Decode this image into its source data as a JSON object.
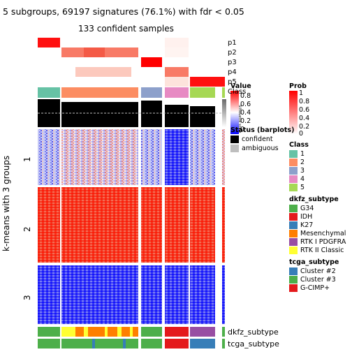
{
  "title": "5 subgroups, 69197 signatures (76.1%) with fdr < 0.05",
  "subtitle": "133 confident samples",
  "y_axis_label": "k-means with 3 groups",
  "row_groups": [
    "1",
    "2",
    "3"
  ],
  "top_annotation_rows": [
    "p1",
    "p2",
    "p3",
    "p4",
    "p5",
    "Class"
  ],
  "silhouette_label": "Silhouette\nscore",
  "bottom_annotation_rows": [
    "dkfz_subtype",
    "tcga_subtype"
  ],
  "legend_value": {
    "title": "Value",
    "ticks": [
      "0.8",
      "0.6",
      "0.4",
      "0.2",
      "0"
    ]
  },
  "legend_silhouette": {
    "ticks": [
      "0.8",
      "0.6",
      "0.4",
      "0.2",
      "0"
    ],
    "label": "Silhouette score"
  },
  "legend_status": {
    "title": "Status (barplots)",
    "items": [
      {
        "label": "confident",
        "color": "#000000"
      },
      {
        "label": "ambiguous",
        "color": "#bebebe"
      }
    ]
  },
  "legend_prob": {
    "title": "Prob",
    "ticks": [
      "1",
      "0.8",
      "0.6",
      "0.4",
      "0.2",
      "0"
    ]
  },
  "legend_class": {
    "title": "Class",
    "items": [
      {
        "label": "1",
        "color": "#66c2a5"
      },
      {
        "label": "2",
        "color": "#fc8d62"
      },
      {
        "label": "3",
        "color": "#8da0cb"
      },
      {
        "label": "4",
        "color": "#e78ac3"
      },
      {
        "label": "5",
        "color": "#a6d854"
      }
    ]
  },
  "legend_dkfz": {
    "title": "dkfz_subtype",
    "items": [
      {
        "label": "G34",
        "color": "#4daf4a"
      },
      {
        "label": "IDH",
        "color": "#e41a1c"
      },
      {
        "label": "K27",
        "color": "#377eb8"
      },
      {
        "label": "Mesenchymal",
        "color": "#ff7f00"
      },
      {
        "label": "RTK I PDGFRA",
        "color": "#984ea3"
      },
      {
        "label": "RTK II Classic",
        "color": "#ffff33"
      }
    ]
  },
  "legend_tcga": {
    "title": "tcga_subtype",
    "items": [
      {
        "label": "Cluster #2",
        "color": "#377eb8"
      },
      {
        "label": "Cluster #3",
        "color": "#4daf4a"
      },
      {
        "label": "G-CIMP+",
        "color": "#e41a1c"
      }
    ]
  },
  "colors": {
    "high": "#ff0000",
    "mid": "#ffffff",
    "low": "#0000ff",
    "prob_high": "#ff0000"
  }
}
